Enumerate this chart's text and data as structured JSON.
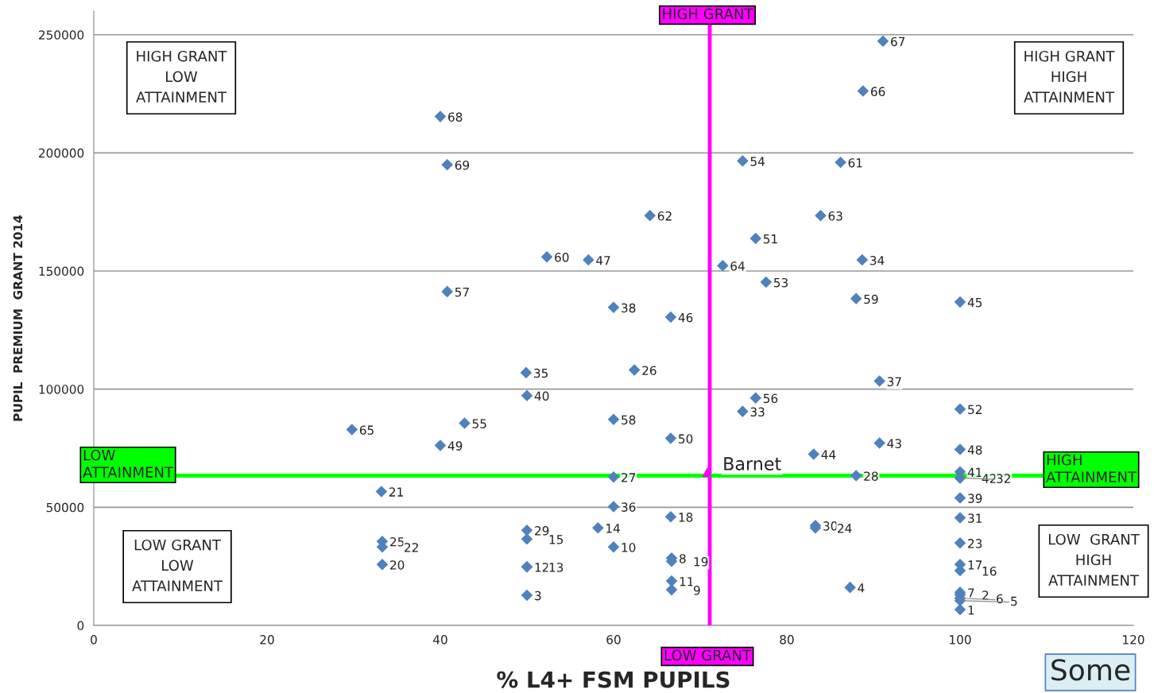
{
  "chart_data": {
    "type": "scatter",
    "xlabel": "% L4+ FSM PUPILS",
    "ylabel": "PUPIL  PREMIUM  GRANT 2014",
    "xlim": [
      0,
      120
    ],
    "xticks": [
      0,
      20,
      40,
      60,
      80,
      100,
      120
    ],
    "ylim": [
      0,
      260000
    ],
    "yticks": [
      0,
      50000,
      100000,
      150000,
      200000,
      250000
    ],
    "grid": "y",
    "legend": false,
    "marker": "diamond",
    "series": [
      {
        "color": "#4f81bd",
        "x": [
          91.1,
          88.8,
          40.0,
          40.8,
          74.9,
          86.2,
          64.2,
          83.9,
          76.4,
          52.3,
          57.1,
          72.6,
          88.7,
          77.6,
          40.8,
          88.0,
          100,
          60,
          66.6,
          49.9,
          62.4,
          90.7,
          50,
          76.4,
          74.9,
          100,
          60,
          29.8,
          42.8,
          66.6,
          40,
          90.7,
          83.1,
          100,
          60,
          88,
          100,
          100,
          100,
          33.2,
          100,
          60,
          100,
          66.6,
          58.2,
          50,
          50,
          83.3,
          83.3,
          33.3,
          33.3,
          60,
          100,
          66.7,
          66.7,
          100,
          100,
          33.3,
          50,
          50,
          66.7,
          66.7,
          87.3,
          50,
          100,
          100,
          100,
          100,
          100
        ],
        "values": [
          247300,
          226200,
          215400,
          195000,
          196600,
          196000,
          173500,
          173500,
          163800,
          156000,
          154700,
          152300,
          154700,
          145300,
          141300,
          138300,
          136900,
          134600,
          130500,
          107000,
          108100,
          103400,
          97300,
          96300,
          90600,
          91600,
          87200,
          82900,
          85600,
          79200,
          76200,
          77200,
          72500,
          74500,
          62800,
          63400,
          65000,
          62400,
          62400,
          56700,
          54000,
          50300,
          45600,
          46000,
          41300,
          40300,
          36600,
          42300,
          41300,
          35600,
          33200,
          33200,
          34900,
          28500,
          27200,
          25800,
          23200,
          25800,
          24800,
          24800,
          18800,
          15100,
          16100,
          12800,
          14000,
          13000,
          11500,
          10500,
          6700
        ]
      },
      {
        "name": "Barnet",
        "color": "#ff00ff",
        "marker": "triangle",
        "x": [
          70.8
        ],
        "values": [
          64800
        ]
      }
    ],
    "ref_lines": [
      {
        "axis": "x",
        "value": 71.1,
        "color": "#ff00ff"
      },
      {
        "axis": "y",
        "value": 63400,
        "color": "#00ff00"
      }
    ],
    "annotations": [
      "HIGH GRANT\nLOW\nATTAINMENT",
      "HIGH GRANT\nHIGH\nATTAINMENT",
      "LOW GRANT\nLOW\nATTAINMENT",
      "LOW  GRANT\nHIGH\nATTAINMENT",
      "LOW\nATTAINMENT",
      "HIGH\nATTAINMENT",
      "HIGH GRANT",
      "LOW GRANT",
      "Some",
      {
        "text": "67",
        "x": 91.1,
        "y": 247300
      },
      {
        "text": "66",
        "x": 88.8,
        "y": 226200
      },
      {
        "text": "68",
        "x": 40.0,
        "y": 215400
      },
      {
        "text": "69",
        "x": 40.8,
        "y": 195000
      },
      {
        "text": "54",
        "x": 74.9,
        "y": 196600
      },
      {
        "text": "61",
        "x": 86.2,
        "y": 196000
      },
      {
        "text": "62",
        "x": 64.2,
        "y": 173500
      },
      {
        "text": "63",
        "x": 83.9,
        "y": 173500
      },
      {
        "text": "51",
        "x": 76.4,
        "y": 163800
      },
      {
        "text": "60",
        "x": 52.3,
        "y": 156000
      },
      {
        "text": "47",
        "x": 57.1,
        "y": 154700
      },
      {
        "text": "64",
        "x": 72.6,
        "y": 152300
      },
      {
        "text": "34",
        "x": 88.7,
        "y": 154700
      },
      {
        "text": "53",
        "x": 77.6,
        "y": 145300
      },
      {
        "text": "57",
        "x": 40.8,
        "y": 141300
      },
      {
        "text": "59",
        "x": 88.0,
        "y": 138300
      },
      {
        "text": "45",
        "x": 100,
        "y": 136900
      },
      {
        "text": "38",
        "x": 60,
        "y": 134600
      },
      {
        "text": "46",
        "x": 66.6,
        "y": 130500
      },
      {
        "text": "35",
        "x": 49.9,
        "y": 107000
      },
      {
        "text": "26",
        "x": 62.4,
        "y": 108100
      },
      {
        "text": "37",
        "x": 90.7,
        "y": 103400
      },
      {
        "text": "40",
        "x": 50,
        "y": 97300
      },
      {
        "text": "56",
        "x": 76.4,
        "y": 96300
      },
      {
        "text": "33",
        "x": 74.9,
        "y": 90600
      },
      {
        "text": "52",
        "x": 100,
        "y": 91600
      },
      {
        "text": "58",
        "x": 60,
        "y": 87200
      },
      {
        "text": "65",
        "x": 29.8,
        "y": 82900
      },
      {
        "text": "55",
        "x": 42.8,
        "y": 85600
      },
      {
        "text": "50",
        "x": 66.6,
        "y": 79200
      },
      {
        "text": "49",
        "x": 40,
        "y": 76200
      },
      {
        "text": "43",
        "x": 90.7,
        "y": 77200
      },
      {
        "text": "44",
        "x": 83.1,
        "y": 72500
      },
      {
        "text": "48",
        "x": 100,
        "y": 74500
      },
      {
        "text": "27",
        "x": 60,
        "y": 62800
      },
      {
        "text": "28",
        "x": 88,
        "y": 63400
      },
      {
        "text": "41",
        "x": 100,
        "y": 65000
      },
      {
        "text": "42",
        "x": 100,
        "y": 62400
      },
      {
        "text": "32",
        "x": 100,
        "y": 62400
      },
      {
        "text": "21",
        "x": 33.2,
        "y": 56700
      },
      {
        "text": "39",
        "x": 100,
        "y": 54000
      },
      {
        "text": "36",
        "x": 60,
        "y": 50300
      },
      {
        "text": "31",
        "x": 100,
        "y": 45600
      },
      {
        "text": "18",
        "x": 66.6,
        "y": 46000
      },
      {
        "text": "14",
        "x": 58.2,
        "y": 41300
      },
      {
        "text": "29",
        "x": 50,
        "y": 40300
      },
      {
        "text": "15",
        "x": 50,
        "y": 36600
      },
      {
        "text": "30",
        "x": 83.3,
        "y": 42300
      },
      {
        "text": "24",
        "x": 83.3,
        "y": 41300
      },
      {
        "text": "25",
        "x": 33.3,
        "y": 35600
      },
      {
        "text": "22",
        "x": 33.3,
        "y": 33200
      },
      {
        "text": "10",
        "x": 60,
        "y": 33200
      },
      {
        "text": "23",
        "x": 100,
        "y": 34900
      },
      {
        "text": "8",
        "x": 66.7,
        "y": 28500
      },
      {
        "text": "19",
        "x": 66.7,
        "y": 27200
      },
      {
        "text": "17",
        "x": 100,
        "y": 25800
      },
      {
        "text": "16",
        "x": 100,
        "y": 23200
      },
      {
        "text": "20",
        "x": 33.3,
        "y": 25800
      },
      {
        "text": "12",
        "x": 50,
        "y": 24800
      },
      {
        "text": "13",
        "x": 50,
        "y": 24800
      },
      {
        "text": "11",
        "x": 66.7,
        "y": 18800
      },
      {
        "text": "9",
        "x": 66.7,
        "y": 15100
      },
      {
        "text": "4",
        "x": 87.3,
        "y": 16100
      },
      {
        "text": "3",
        "x": 50,
        "y": 12800
      },
      {
        "text": "7",
        "x": 100,
        "y": 14000
      },
      {
        "text": "2",
        "x": 100,
        "y": 13000
      },
      {
        "text": "6",
        "x": 100,
        "y": 11500
      },
      {
        "text": "5",
        "x": 100,
        "y": 10500
      },
      {
        "text": "1",
        "x": 100,
        "y": 6700
      }
    ]
  }
}
